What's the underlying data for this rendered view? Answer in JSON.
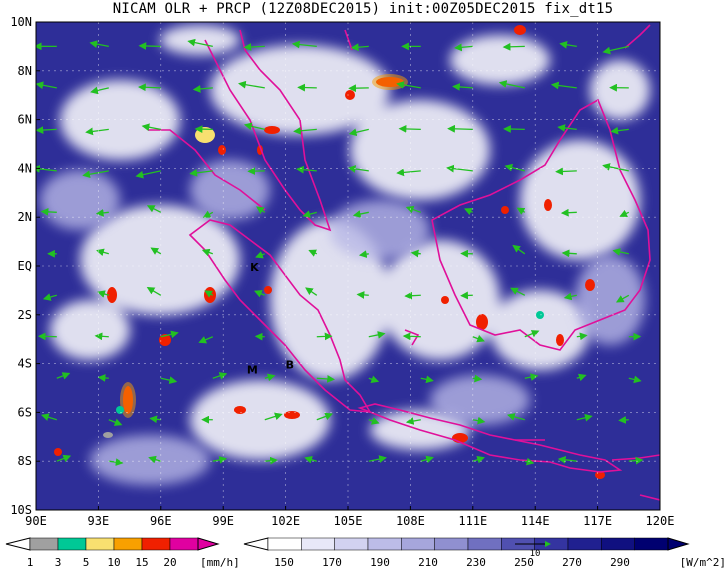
{
  "title": "NICAM OLR + PRCP (12Z08DEC2015) init:00Z05DEC2015 fix_dt15",
  "lat_labels": [
    "10N",
    "8N",
    "6N",
    "4N",
    "2N",
    "EQ",
    "2S",
    "4S",
    "6S",
    "8S",
    "10S"
  ],
  "lon_labels": [
    "90E",
    "93E",
    "96E",
    "99E",
    "102E",
    "105E",
    "108E",
    "111E",
    "114E",
    "117E",
    "120E"
  ],
  "map_labels": [
    {
      "text": "K",
      "lon": 100.5,
      "lat": -0.2
    },
    {
      "text": "M",
      "lon": 100.4,
      "lat": -4.4
    },
    {
      "text": "B",
      "lon": 102.2,
      "lat": -4.2
    }
  ],
  "prcp_colorbar": {
    "ticks": [
      "1",
      "3",
      "5",
      "10",
      "15",
      "20"
    ],
    "unit": "[mm/h]",
    "colors": [
      "#a0a0a0",
      "#00c896",
      "#f8e070",
      "#f8a000",
      "#f02000",
      "#e000a0"
    ]
  },
  "olr_colorbar": {
    "ticks": [
      "150",
      "170",
      "190",
      "210",
      "230",
      "250",
      "270",
      "290"
    ],
    "unit": "[W/m^2]",
    "colors": [
      "#ffffff",
      "#e8e8f8",
      "#d2d2f0",
      "#bcbce8",
      "#a6a6dc",
      "#9090d0",
      "#7070c0",
      "#5050b0",
      "#3434a0",
      "#202090",
      "#101080",
      "#000070"
    ]
  },
  "wind_vector_legend": "10",
  "colors": {
    "background_olr": "#2e2e98",
    "coastline": "#e0109a",
    "wind_arrows": "#22c022"
  }
}
